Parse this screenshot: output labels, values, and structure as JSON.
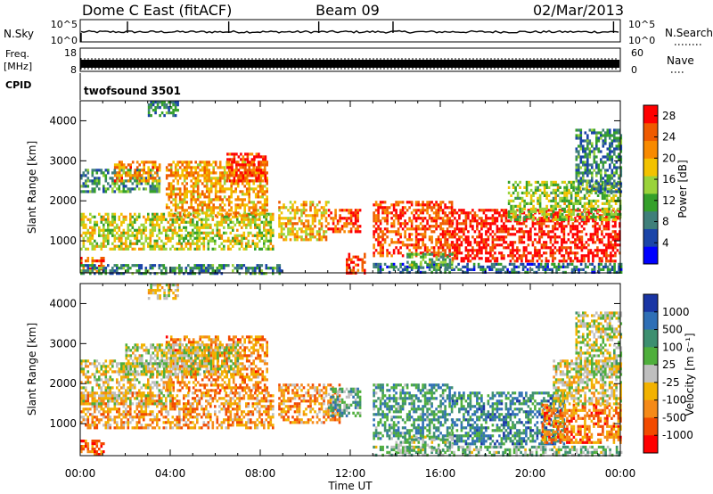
{
  "header": {
    "station": "Dome C East (fitACF)",
    "beam": "Beam 09",
    "date": "02/Mar/2013"
  },
  "strips": {
    "nsky": {
      "label": "N.Sky",
      "ticks": [
        "10^5",
        "10^0"
      ],
      "right_label": "N.Search",
      "right_ticks": [
        "10^5",
        "10^0"
      ]
    },
    "freq": {
      "label_top": "Freq.",
      "label_bottom": "[MHz]",
      "ticks": [
        "18",
        "8"
      ],
      "right_label": "Nave",
      "right_ticks": [
        "60",
        "0"
      ]
    },
    "cpid": {
      "label": "CPID",
      "value": "twofsound 3501"
    }
  },
  "x_axis": {
    "label": "Time UT",
    "ticks": [
      "00:00",
      "04:00",
      "08:00",
      "12:00",
      "16:00",
      "20:00",
      "00:00"
    ]
  },
  "colors": {
    "power": [
      "#0000ff",
      "#1a44a8",
      "#3f7f7a",
      "#34a02a",
      "#9ad33a",
      "#f2c200",
      "#f88a00",
      "#ef5a00",
      "#ff0000"
    ],
    "velocity": [
      "#1935a4",
      "#2f6fb6",
      "#3d8f70",
      "#4faf3c",
      "#bfbfbf",
      "#f2b200",
      "#f58a18",
      "#f24a00",
      "#ff0000"
    ]
  },
  "chart_data": [
    {
      "type": "heatmap",
      "panel": "power",
      "xlabel": "",
      "ylabel": "Slant Range [km]",
      "x_range_hours": [
        0,
        24
      ],
      "ylim": [
        200,
        4500
      ],
      "y_ticks": [
        1000,
        2000,
        3000,
        4000
      ],
      "colorbar": {
        "label": "Power [dB]",
        "ticks": [
          4,
          8,
          12,
          16,
          20,
          24,
          28
        ],
        "range": [
          0,
          30
        ]
      },
      "regions": [
        {
          "t": [
            0.0,
            8.6
          ],
          "r": [
            800,
            1700
          ],
          "level": 0.55
        },
        {
          "t": [
            3.8,
            8.3
          ],
          "r": [
            1600,
            3000
          ],
          "level": 0.7
        },
        {
          "t": [
            0.0,
            3.5
          ],
          "r": [
            2200,
            2800
          ],
          "level": 0.35
        },
        {
          "t": [
            1.5,
            3.5
          ],
          "r": [
            2500,
            3000
          ],
          "level": 0.75
        },
        {
          "t": [
            6.5,
            8.2
          ],
          "r": [
            2500,
            3200
          ],
          "level": 0.9
        },
        {
          "t": [
            0.0,
            1.0
          ],
          "r": [
            200,
            600
          ],
          "level": 0.8
        },
        {
          "t": [
            0.0,
            9.0
          ],
          "r": [
            200,
            420
          ],
          "level": 0.3
        },
        {
          "t": [
            8.8,
            11.0
          ],
          "r": [
            1000,
            2000
          ],
          "level": 0.65
        },
        {
          "t": [
            11.0,
            12.4
          ],
          "r": [
            1200,
            1800
          ],
          "level": 0.85
        },
        {
          "t": [
            11.8,
            12.6
          ],
          "r": [
            200,
            700
          ],
          "level": 0.9
        },
        {
          "t": [
            13.0,
            16.5
          ],
          "r": [
            600,
            2000
          ],
          "level": 0.85
        },
        {
          "t": [
            16.5,
            24.0
          ],
          "r": [
            500,
            1800
          ],
          "level": 0.95
        },
        {
          "t": [
            19.0,
            24.0
          ],
          "r": [
            1500,
            2500
          ],
          "level": 0.5
        },
        {
          "t": [
            13.0,
            24.0
          ],
          "r": [
            200,
            450
          ],
          "level": 0.25
        },
        {
          "t": [
            14.5,
            16.5
          ],
          "r": [
            300,
            700
          ],
          "level": 0.4
        },
        {
          "t": [
            22.0,
            24.0
          ],
          "r": [
            2200,
            3800
          ],
          "level": 0.3
        },
        {
          "t": [
            3.0,
            4.3
          ],
          "r": [
            4100,
            4500
          ],
          "level": 0.3
        }
      ]
    },
    {
      "type": "heatmap",
      "panel": "velocity",
      "xlabel": "Time UT",
      "ylabel": "Slant Range [km]",
      "x_range_hours": [
        0,
        24
      ],
      "ylim": [
        200,
        4500
      ],
      "y_ticks": [
        1000,
        2000,
        3000,
        4000
      ],
      "colorbar": {
        "label": "Velocity [m s⁻¹]",
        "ticks": [
          1000,
          500,
          100,
          25,
          -25,
          -100,
          -500,
          -1000
        ]
      },
      "regions": [
        {
          "t": [
            0.0,
            8.6
          ],
          "r": [
            900,
            1800
          ],
          "level": 0.68
        },
        {
          "t": [
            3.8,
            8.3
          ],
          "r": [
            1800,
            3200
          ],
          "level": 0.72
        },
        {
          "t": [
            0.0,
            4.0
          ],
          "r": [
            1500,
            2600
          ],
          "level": 0.55
        },
        {
          "t": [
            2.0,
            7.0
          ],
          "r": [
            2200,
            3000
          ],
          "level": 0.5
        },
        {
          "t": [
            0.0,
            1.0
          ],
          "r": [
            200,
            600
          ],
          "level": 0.8
        },
        {
          "t": [
            8.8,
            11.5
          ],
          "r": [
            1000,
            2000
          ],
          "level": 0.7
        },
        {
          "t": [
            11.0,
            12.4
          ],
          "r": [
            1200,
            1900
          ],
          "level": 0.35
        },
        {
          "t": [
            13.0,
            16.5
          ],
          "r": [
            600,
            2000
          ],
          "level": 0.3
        },
        {
          "t": [
            16.5,
            21.5
          ],
          "r": [
            500,
            1800
          ],
          "level": 0.25
        },
        {
          "t": [
            20.5,
            24.0
          ],
          "r": [
            500,
            1500
          ],
          "level": 0.75
        },
        {
          "t": [
            21.0,
            24.0
          ],
          "r": [
            1500,
            2600
          ],
          "level": 0.55
        },
        {
          "t": [
            13.0,
            24.0
          ],
          "r": [
            200,
            450
          ],
          "level": 0.4
        },
        {
          "t": [
            14.0,
            16.5
          ],
          "r": [
            300,
            700
          ],
          "level": 0.4
        },
        {
          "t": [
            22.0,
            24.0
          ],
          "r": [
            2200,
            3800
          ],
          "level": 0.5
        },
        {
          "t": [
            3.0,
            4.3
          ],
          "r": [
            4100,
            4500
          ],
          "level": 0.55
        }
      ]
    }
  ]
}
